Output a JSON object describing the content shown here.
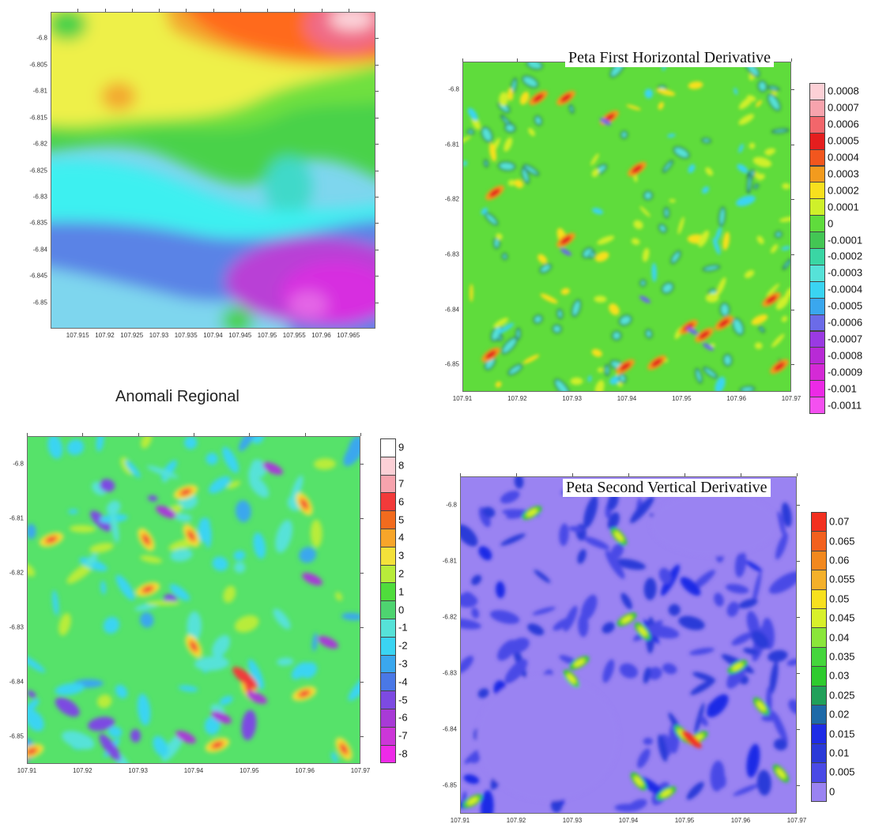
{
  "chart_data": [
    {
      "id": "regional",
      "type": "heatmap",
      "title": "Anomali Regional",
      "x_ticks": [
        "107.915",
        "107.92",
        "107.925",
        "107.93",
        "107.935",
        "107.94",
        "107.945",
        "107.95",
        "107.955",
        "107.96",
        "107.965"
      ],
      "y_ticks": [
        "-6.8",
        "-6.805",
        "-6.81",
        "-6.815",
        "-6.82",
        "-6.825",
        "-6.83",
        "-6.835",
        "-6.84",
        "-6.845",
        "-6.85"
      ],
      "xlim": [
        107.91,
        107.97
      ],
      "ylim": [
        -6.855,
        -6.795
      ],
      "colors": [
        "#b93fd6",
        "#5a83e6",
        "#7ed6ee",
        "#3cf0f0",
        "#3fd9c9",
        "#4ad24a",
        "#6fe040",
        "#b5ec3a",
        "#eef04a",
        "#f3a82e",
        "#ff6a1e",
        "#f23b2b",
        "#f06b86",
        "#fcd7dd"
      ]
    },
    {
      "id": "fhd",
      "type": "heatmap",
      "title": "Peta First Horizontal Derivative",
      "x_ticks": [
        "107.91",
        "107.92",
        "107.93",
        "107.94",
        "107.95",
        "107.96",
        "107.97"
      ],
      "y_ticks": [
        "-6.8",
        "-6.81",
        "-6.82",
        "-6.83",
        "-6.84",
        "-6.85"
      ],
      "xlim": [
        107.91,
        107.97
      ],
      "ylim": [
        -6.855,
        -6.795
      ],
      "legend": [
        "0.0008",
        "0.0007",
        "0.0006",
        "0.0005",
        "0.0004",
        "0.0003",
        "0.0002",
        "0.0001",
        "0",
        "-0.0001",
        "-0.0002",
        "-0.0003",
        "-0.0004",
        "-0.0005",
        "-0.0006",
        "-0.0007",
        "-0.0008",
        "-0.0009",
        "-0.001",
        "-0.0011"
      ],
      "legend_colors": [
        "#fcd0d6",
        "#f7a3ad",
        "#f2666b",
        "#e51e1e",
        "#f2561e",
        "#f29b1e",
        "#f7e01e",
        "#cff02a",
        "#5fdc3c",
        "#43c654",
        "#3ad6a4",
        "#56e2d8",
        "#3ad4f2",
        "#3aa7ee",
        "#6b6be8",
        "#9a3ae2",
        "#b82ad6",
        "#d42ad6",
        "#ec2ae6",
        "#f450f0"
      ]
    },
    {
      "id": "residual",
      "type": "heatmap",
      "title": "",
      "x_ticks": [
        "107.91",
        "107.92",
        "107.93",
        "107.94",
        "107.95",
        "107.96",
        "107.97"
      ],
      "y_ticks": [
        "-6.8",
        "-6.81",
        "-6.82",
        "-6.83",
        "-6.84",
        "-6.85"
      ],
      "xlim": [
        107.91,
        107.97
      ],
      "ylim": [
        -6.855,
        -6.795
      ],
      "legend": [
        "9",
        "8",
        "7",
        "6",
        "5",
        "4",
        "3",
        "2",
        "1",
        "0",
        "-1",
        "-2",
        "-3",
        "-4",
        "-5",
        "-6",
        "-7",
        "-8"
      ],
      "legend_colors": [
        "#ffffff",
        "#fcd0d6",
        "#f7a3ad",
        "#f23a3a",
        "#f26b1e",
        "#f7a52a",
        "#f4e13a",
        "#b8ec3a",
        "#4fdc3c",
        "#4ed470",
        "#56e2d8",
        "#3ad4f2",
        "#3aa7ee",
        "#4a78e6",
        "#7d4ae2",
        "#a83ad6",
        "#cc36d8",
        "#ee2ae8"
      ]
    },
    {
      "id": "svd",
      "type": "heatmap",
      "title": "Peta Second Vertical Derivative",
      "x_ticks": [
        "107.91",
        "107.92",
        "107.93",
        "107.94",
        "107.95",
        "107.96",
        "107.97"
      ],
      "y_ticks": [
        "-6.8",
        "-6.81",
        "-6.82",
        "-6.83",
        "-6.84",
        "-6.85"
      ],
      "xlim": [
        107.91,
        107.97
      ],
      "ylim": [
        -6.855,
        -6.795
      ],
      "legend": [
        "0.07",
        "0.065",
        "0.06",
        "0.055",
        "0.05",
        "0.045",
        "0.04",
        "0.035",
        "0.03",
        "0.025",
        "0.02",
        "0.015",
        "0.01",
        "0.005",
        "0"
      ],
      "legend_colors": [
        "#f23020",
        "#f2601e",
        "#f2881e",
        "#f4b02a",
        "#f7e01e",
        "#d8f02a",
        "#8ae63a",
        "#44d63c",
        "#2ecb2e",
        "#21a05a",
        "#1e6aa8",
        "#1e2ce6",
        "#2a3ad8",
        "#4a4ae6",
        "#9a83f2"
      ]
    }
  ]
}
